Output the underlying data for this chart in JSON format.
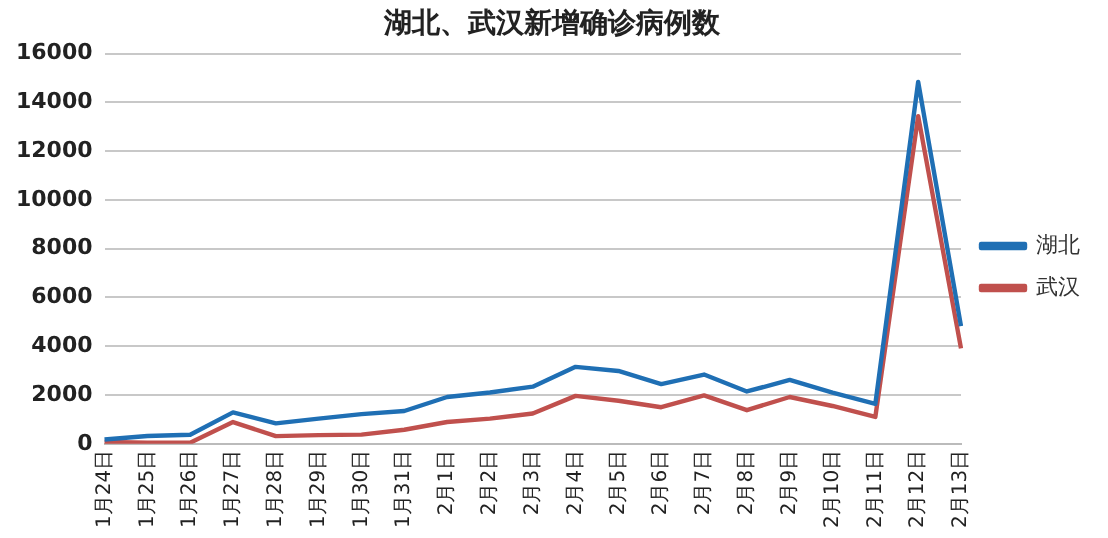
{
  "chart_data": {
    "type": "line",
    "title": "湖北、武汉新增确诊病例数",
    "categories": [
      "1月24日",
      "1月25日",
      "1月26日",
      "1月27日",
      "1月28日",
      "1月29日",
      "1月30日",
      "1月31日",
      "2月1日",
      "2月2日",
      "2月3日",
      "2月4日",
      "2月5日",
      "2月6日",
      "2月7日",
      "2月8日",
      "2月9日",
      "2月10日",
      "2月11日",
      "2月12日",
      "2月13日"
    ],
    "series": [
      {
        "name": "湖北",
        "color": "#1f6fb4",
        "values": [
          180,
          323,
          371,
          1291,
          840,
          1032,
          1220,
          1347,
          1921,
          2103,
          2345,
          3156,
          2987,
          2447,
          2841,
          2147,
          2618,
          2097,
          1638,
          14840,
          4823
        ]
      },
      {
        "name": "武汉",
        "color": "#c0504d",
        "values": [
          77,
          46,
          46,
          892,
          315,
          356,
          378,
          576,
          894,
          1033,
          1242,
          1967,
          1766,
          1501,
          1985,
          1379,
          1920,
          1552,
          1104,
          13436,
          3910
        ]
      }
    ],
    "ylim": [
      0,
      16000
    ],
    "yticks": [
      0,
      2000,
      4000,
      6000,
      8000,
      10000,
      12000,
      14000,
      16000
    ],
    "grid": "y",
    "legend": "right",
    "marker": "none",
    "line_style": "solid"
  }
}
